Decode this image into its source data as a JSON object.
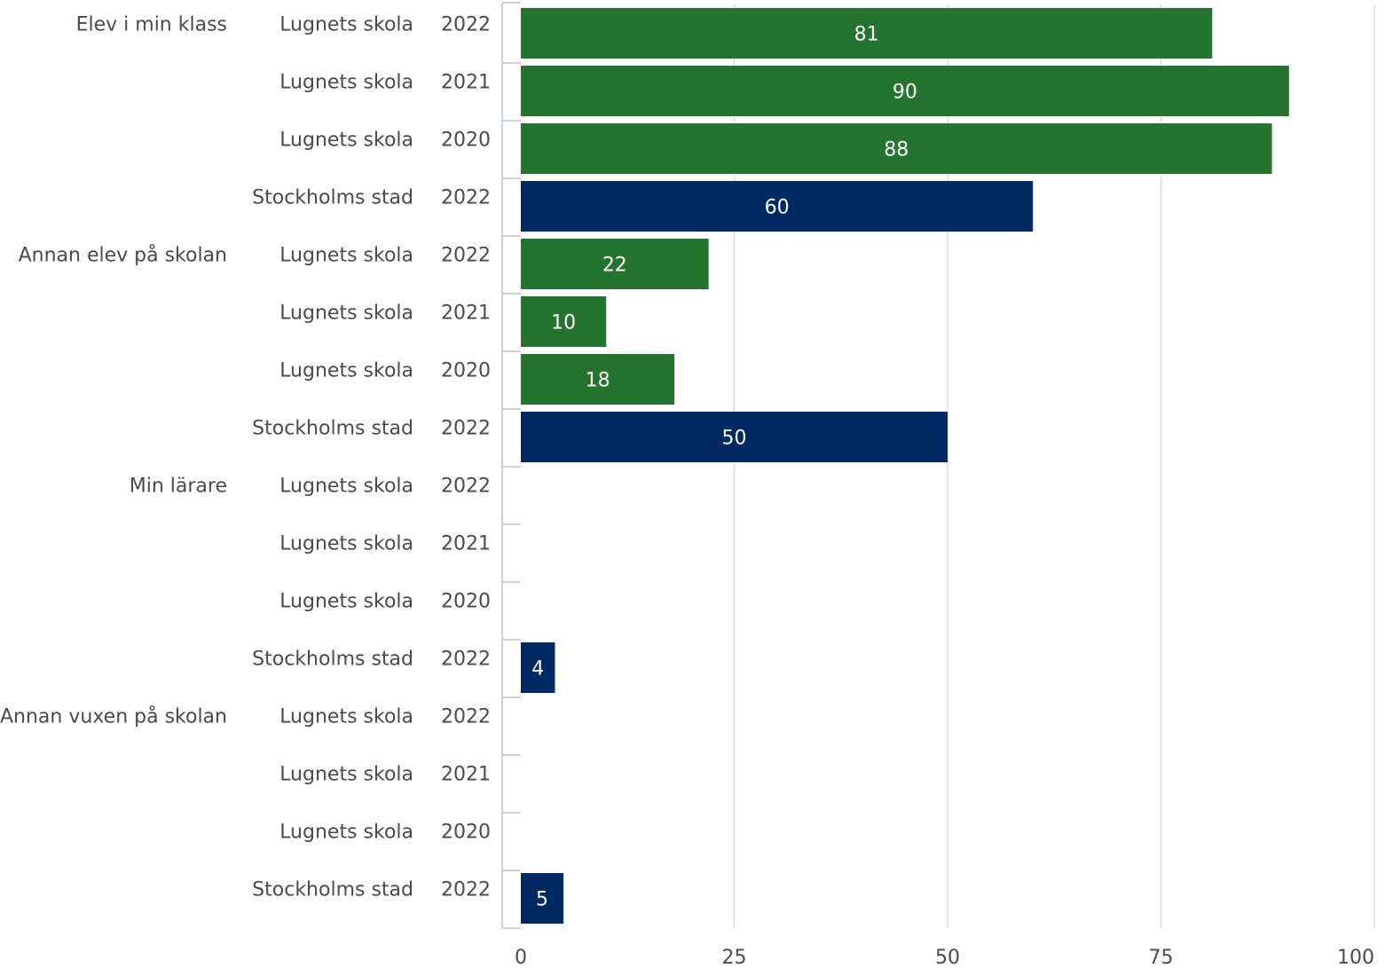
{
  "chart_data": {
    "type": "bar",
    "orientation": "horizontal",
    "title": "",
    "xlabel": "",
    "ylabel": "",
    "xlim": [
      0,
      100
    ],
    "x_ticks": [
      "0",
      "25",
      "50",
      "75",
      "100"
    ],
    "grid": true,
    "colors": {
      "Lugnets skola": "#26732f",
      "Stockholms stad": "#002b62"
    },
    "rows": [
      {
        "group": "Elev i min klass",
        "entity": "Lugnets skola",
        "year": "2022",
        "value": 81
      },
      {
        "group": "",
        "entity": "Lugnets skola",
        "year": "2021",
        "value": 90
      },
      {
        "group": "",
        "entity": "Lugnets skola",
        "year": "2020",
        "value": 88
      },
      {
        "group": "",
        "entity": "Stockholms stad",
        "year": "2022",
        "value": 60
      },
      {
        "group": "Annan elev på skolan",
        "entity": "Lugnets skola",
        "year": "2022",
        "value": 22
      },
      {
        "group": "",
        "entity": "Lugnets skola",
        "year": "2021",
        "value": 10
      },
      {
        "group": "",
        "entity": "Lugnets skola",
        "year": "2020",
        "value": 18
      },
      {
        "group": "",
        "entity": "Stockholms stad",
        "year": "2022",
        "value": 50
      },
      {
        "group": "Min lärare",
        "entity": "Lugnets skola",
        "year": "2022",
        "value": null
      },
      {
        "group": "",
        "entity": "Lugnets skola",
        "year": "2021",
        "value": null
      },
      {
        "group": "",
        "entity": "Lugnets skola",
        "year": "2020",
        "value": null
      },
      {
        "group": "",
        "entity": "Stockholms stad",
        "year": "2022",
        "value": 4
      },
      {
        "group": "Annan vuxen på skolan",
        "entity": "Lugnets skola",
        "year": "2022",
        "value": null
      },
      {
        "group": "",
        "entity": "Lugnets skola",
        "year": "2021",
        "value": null
      },
      {
        "group": "",
        "entity": "Lugnets skola",
        "year": "2020",
        "value": null
      },
      {
        "group": "",
        "entity": "Stockholms stad",
        "year": "2022",
        "value": 5
      }
    ]
  }
}
